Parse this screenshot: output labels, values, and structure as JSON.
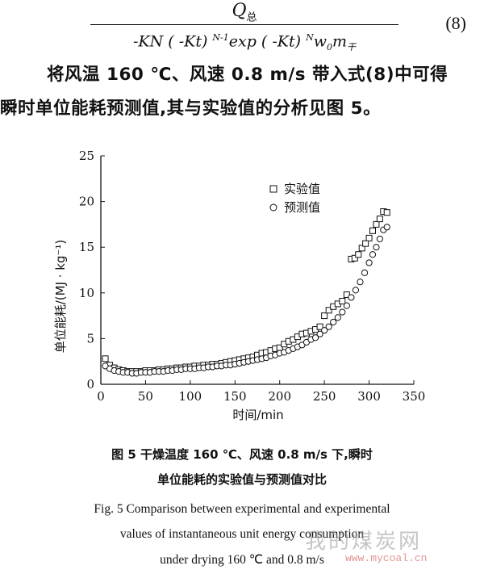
{
  "equation": {
    "numerator": "Q",
    "numerator_sub": "总",
    "den_part1": "-KN ( -Kt) ",
    "den_sup1": "N-1",
    "den_part2": "exp ( -Kt) ",
    "den_sup2": "N",
    "den_part3": "w",
    "den_sub3": "0",
    "den_part4": "m",
    "den_sub4": "干",
    "number": "(8)"
  },
  "paragraph": {
    "line1": "将风温 160 ℃、风速 0.8 m/s 带入式(8)中可得",
    "line2": "瞬时单位能耗预测值,其与实验值的分析见图 5。"
  },
  "chart_data": {
    "type": "scatter",
    "xlabel": "时间/min",
    "ylabel": "单位能耗/(MJ · kg⁻¹)",
    "xlim": [
      0,
      350
    ],
    "ylim": [
      0,
      25
    ],
    "xticks": [
      0,
      50,
      100,
      150,
      200,
      250,
      300,
      350
    ],
    "yticks": [
      0,
      5,
      10,
      15,
      20,
      25
    ],
    "grid": false,
    "legend_position": "top-right",
    "series": [
      {
        "name": "实验值",
        "marker": "square",
        "x": [
          5,
          10,
          15,
          20,
          25,
          30,
          35,
          40,
          45,
          50,
          55,
          60,
          65,
          70,
          75,
          80,
          85,
          90,
          95,
          100,
          105,
          110,
          115,
          120,
          125,
          130,
          135,
          140,
          145,
          150,
          155,
          160,
          165,
          170,
          175,
          180,
          185,
          190,
          195,
          200,
          205,
          210,
          215,
          220,
          225,
          230,
          235,
          240,
          245,
          250,
          255,
          260,
          265,
          270,
          275,
          280,
          284,
          288,
          292,
          296,
          300,
          304,
          308,
          312,
          316,
          320
        ],
        "y": [
          2.8,
          2.1,
          1.8,
          1.6,
          1.5,
          1.4,
          1.4,
          1.4,
          1.4,
          1.5,
          1.5,
          1.5,
          1.6,
          1.6,
          1.7,
          1.7,
          1.8,
          1.8,
          1.9,
          1.9,
          2.0,
          2.0,
          2.1,
          2.1,
          2.2,
          2.2,
          2.3,
          2.4,
          2.5,
          2.6,
          2.7,
          2.8,
          2.9,
          3.0,
          3.2,
          3.4,
          3.5,
          3.7,
          3.9,
          4.0,
          4.4,
          4.7,
          4.9,
          5.2,
          5.5,
          5.6,
          5.8,
          6.0,
          6.3,
          7.5,
          8.1,
          8.5,
          8.8,
          9.1,
          9.8,
          13.7,
          13.8,
          14.2,
          14.9,
          15.4,
          16.0,
          16.8,
          17.5,
          18.1,
          18.9,
          18.8
        ]
      },
      {
        "name": "预测值",
        "marker": "circle",
        "x": [
          5,
          10,
          15,
          20,
          25,
          30,
          35,
          40,
          45,
          50,
          55,
          60,
          65,
          70,
          75,
          80,
          85,
          90,
          95,
          100,
          105,
          110,
          115,
          120,
          125,
          130,
          135,
          140,
          145,
          150,
          155,
          160,
          165,
          170,
          175,
          180,
          185,
          190,
          195,
          200,
          205,
          210,
          215,
          220,
          225,
          230,
          235,
          240,
          245,
          250,
          255,
          260,
          265,
          270,
          275,
          280,
          285,
          290,
          295,
          300,
          304,
          308,
          312,
          316,
          320
        ],
        "y": [
          2.0,
          1.7,
          1.5,
          1.4,
          1.3,
          1.3,
          1.2,
          1.2,
          1.3,
          1.3,
          1.3,
          1.4,
          1.4,
          1.4,
          1.5,
          1.5,
          1.6,
          1.6,
          1.7,
          1.7,
          1.7,
          1.8,
          1.8,
          1.9,
          1.9,
          2.0,
          2.0,
          2.1,
          2.1,
          2.2,
          2.3,
          2.4,
          2.5,
          2.6,
          2.7,
          2.8,
          2.9,
          3.1,
          3.2,
          3.4,
          3.5,
          3.7,
          3.9,
          4.1,
          4.3,
          4.6,
          4.9,
          5.1,
          5.5,
          5.9,
          6.3,
          6.8,
          7.3,
          7.9,
          8.6,
          9.5,
          10.3,
          11.2,
          12.2,
          13.3,
          14.2,
          15.0,
          15.9,
          16.9,
          17.2
        ]
      }
    ]
  },
  "caption": {
    "cn_line1": "图 5    干燥温度 160 ℃、风速 0.8 m/s 下,瞬时",
    "cn_line2": "单位能耗的实验值与预测值对比",
    "en_line1": "Fig. 5    Comparison between experimental and experimental",
    "en_line2": "values of instantaneous unit energy consumption",
    "en_line3": "under drying 160 ℃ and 0.8 m/s"
  },
  "watermark": {
    "text": "我的煤炭网",
    "url": "www.mycoal.cn"
  }
}
